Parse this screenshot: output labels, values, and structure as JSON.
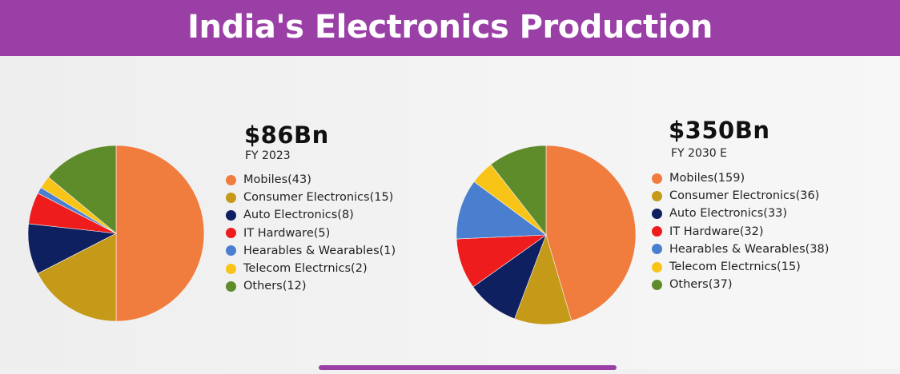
{
  "page": {
    "title": "India's Electronics Production"
  },
  "chart_data": [
    {
      "type": "pie",
      "total": "$86Bn",
      "period": "FY 2023",
      "categories": [
        "Mobiles",
        "Consumer Electronics",
        "Auto Electronics",
        "IT Hardware",
        "Hearables & Wearables",
        "Telecom Electrnics",
        "Others"
      ],
      "values": [
        43,
        15,
        8,
        5,
        1,
        2,
        12
      ],
      "labels": [
        "Mobiles(43)",
        "Consumer Electronics(15)",
        "Auto Electronics(8)",
        "IT Hardware(5)",
        "Hearables & Wearables(1)",
        "Telecom Electrnics(2)",
        "Others(12)"
      ],
      "colors": [
        "#f07c3e",
        "#c49a18",
        "#0f2060",
        "#ee1c1c",
        "#4a7fd0",
        "#f8c418",
        "#5f8c2a"
      ],
      "legend_position": "right"
    },
    {
      "type": "pie",
      "total": "$350Bn",
      "period": "FY 2030 E",
      "categories": [
        "Mobiles",
        "Consumer Electronics",
        "Auto Electronics",
        "IT Hardware",
        "Hearables & Wearables",
        "Telecom Electrnics",
        "Others"
      ],
      "values": [
        159,
        36,
        33,
        32,
        38,
        15,
        37
      ],
      "labels": [
        "Mobiles(159)",
        "Consumer Electronics(36)",
        "Auto Electronics(33)",
        "IT Hardware(32)",
        "Hearables & Wearables(38)",
        "Telecom Electrnics(15)",
        "Others(37)"
      ],
      "colors": [
        "#f07c3e",
        "#c49a18",
        "#0f2060",
        "#ee1c1c",
        "#4a7fd0",
        "#f8c418",
        "#5f8c2a"
      ],
      "legend_position": "right"
    }
  ]
}
